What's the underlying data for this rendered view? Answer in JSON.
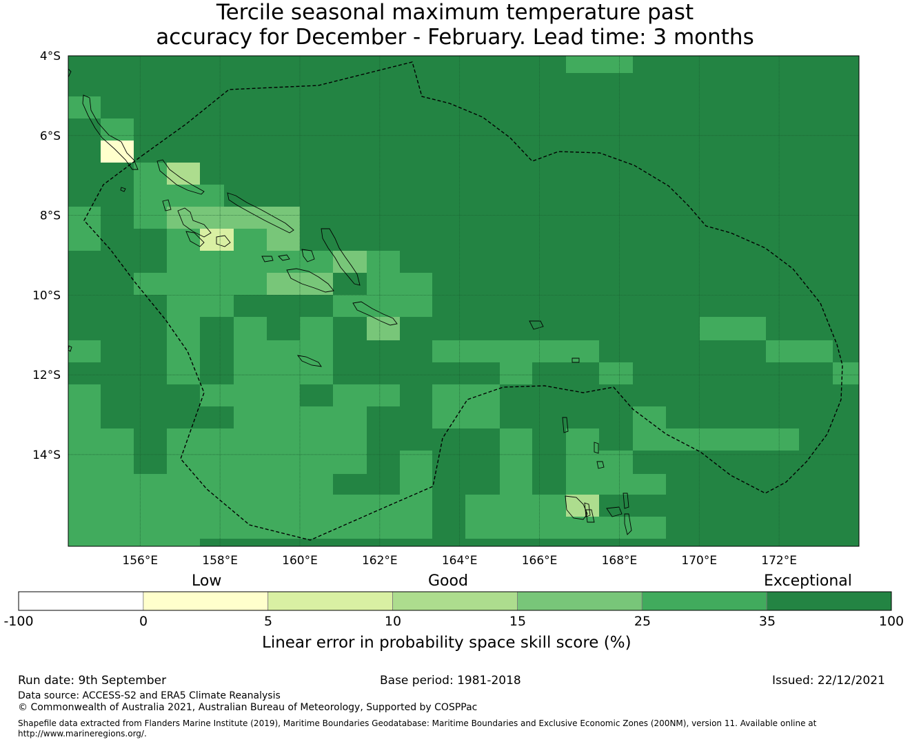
{
  "title": {
    "line1": "Tercile seasonal maximum temperature past",
    "line2": "accuracy for December - February. Lead time: 3 months"
  },
  "map": {
    "lat_labels": [
      "4°S",
      "6°S",
      "8°S",
      "10°S",
      "12°S",
      "14°S"
    ],
    "lon_labels": [
      "156°E",
      "158°E",
      "160°E",
      "162°E",
      "164°E",
      "166°E",
      "168°E",
      "170°E",
      "172°E"
    ],
    "extent": {
      "lon_min": 154.2,
      "lon_max": 174.0,
      "lat_max": -4.0,
      "lat_min": -16.3
    },
    "colors": {
      "ocean_default": "#238443",
      "band_35_100": "#238443",
      "band_25_35": "#41ab5d",
      "band_15_25": "#78c679",
      "band_10_15": "#addd8e",
      "band_5_10": "#d9f0a3",
      "band_0_5": "#ffffcc",
      "band_neg": "#ffffff"
    }
  },
  "colorbar": {
    "quality_labels": {
      "low": "Low",
      "good": "Good",
      "exceptional": "Exceptional"
    },
    "ticks": [
      "-100",
      "0",
      "5",
      "10",
      "15",
      "25",
      "35",
      "100"
    ],
    "axis_label": "Linear error in probability space skill score (%)"
  },
  "footer": {
    "run_date": "Run date: 9th September",
    "base_period": "Base period: 1981-2018",
    "issued": "Issued: 22/12/2021",
    "data_source": "Data source: ACCESS-S2 and ERA5 Climate Reanalysis",
    "copyright": "© Commonwealth of Australia 2021, Australian Bureau of Meteorology, Supported by COSPPac",
    "shapefile": "Shapefile data extracted from Flanders Marine Institute (2019), Maritime Boundaries Geodatabase: Maritime Boundaries and Exclusive Economic Zones (200NM), version 11. Available online at http://www.marineregions.org/."
  }
}
